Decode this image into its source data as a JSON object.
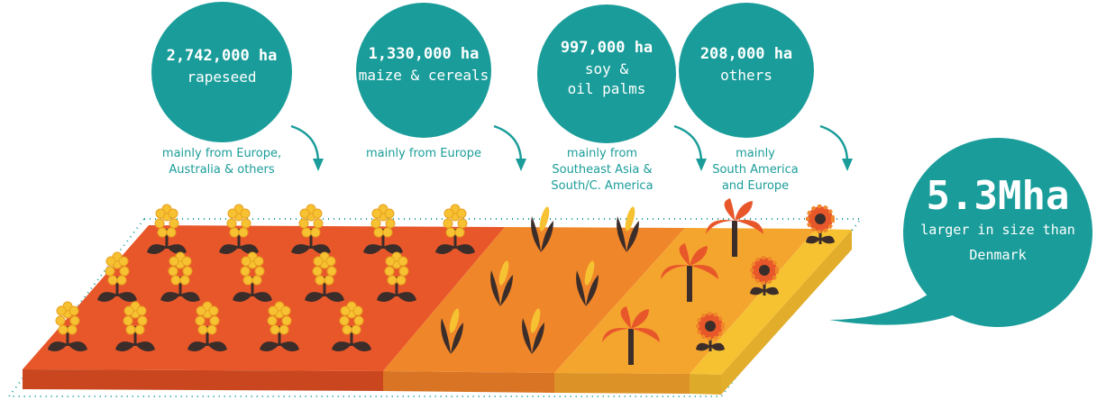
{
  "items": [
    {
      "amount": "2,742,000 ha",
      "crop": [
        "rapeseed"
      ],
      "origin": [
        "mainly from Europe,",
        "Australia & others"
      ]
    },
    {
      "amount": "1,330,000 ha",
      "crop": [
        "maize & cereals"
      ],
      "origin": [
        "mainly from Europe"
      ]
    },
    {
      "amount": "997,000 ha",
      "crop": [
        "soy &",
        "oil palms"
      ],
      "origin": [
        "mainly from",
        "Southeast Asia &",
        "South/C. America"
      ]
    },
    {
      "amount": "208,000 ha",
      "crop": [
        "others"
      ],
      "origin": [
        "mainly",
        "South America",
        "and Europe"
      ]
    }
  ],
  "total": {
    "value": "5.3Mha",
    "caption": [
      "larger in size than",
      "Denmark"
    ]
  }
}
